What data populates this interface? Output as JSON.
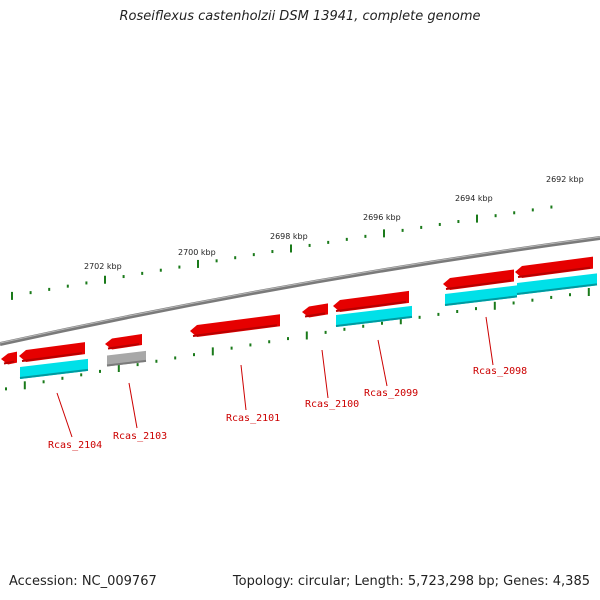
{
  "title": "Roseiflexus castenholzii DSM 13941, complete genome",
  "footer": {
    "accession": "Accession: NC_009767",
    "summary": "Topology: circular; Length: 5,723,298 bp; Genes: 4,385"
  },
  "colors": {
    "backbone": "#7a7a7a",
    "gene": "#e60000",
    "cds": "#00e0e8",
    "pseudo": "#a8a8a8",
    "tick": "#1a7a1a",
    "label": "#cc0000"
  },
  "scale_labels": [
    "2702 kbp",
    "2700 kbp",
    "2698 kbp",
    "2696 kbp",
    "2694 kbp",
    "2692 kbp"
  ],
  "genes": [
    {
      "label": "Rcas_2104"
    },
    {
      "label": "Rcas_2103"
    },
    {
      "label": "Rcas_2101"
    },
    {
      "label": "Rcas_2100"
    },
    {
      "label": "Rcas_2099"
    },
    {
      "label": "Rcas_2098"
    }
  ]
}
